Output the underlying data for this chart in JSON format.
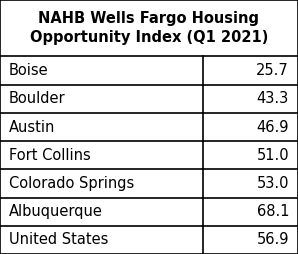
{
  "title": "NAHB Wells Fargo Housing\nOpportunity Index (Q1 2021)",
  "rows": [
    [
      "Boise",
      "25.7"
    ],
    [
      "Boulder",
      "43.3"
    ],
    [
      "Austin",
      "46.9"
    ],
    [
      "Fort Collins",
      "51.0"
    ],
    [
      "Colorado Springs",
      "53.0"
    ],
    [
      "Albuquerque",
      "68.1"
    ],
    [
      "United States",
      "56.9"
    ]
  ],
  "col_split": 0.68,
  "border_color": "#000000",
  "title_fontsize": 10.5,
  "cell_fontsize": 10.5,
  "title_fontstyle": "bold",
  "cell_fontstyle": "normal",
  "lw": 1.2
}
